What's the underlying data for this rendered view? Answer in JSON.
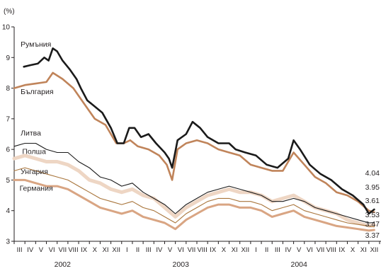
{
  "chart_data": {
    "type": "line",
    "ylabel": "(%)",
    "ylim": [
      3,
      10
    ],
    "yticks": [
      3,
      4,
      5,
      6,
      7,
      8,
      9,
      10
    ],
    "x_months": [
      "III",
      "IV",
      "V",
      "VI",
      "VII",
      "VIII",
      "IX",
      "X",
      "XI",
      "XII",
      "I",
      "II",
      "III",
      "IV",
      "V",
      "VI",
      "VII",
      "VIII",
      "IX",
      "X",
      "XI",
      "XII",
      "I",
      "II",
      "III",
      "IV",
      "V",
      "VI",
      "VII",
      "VIII",
      "IX",
      "X",
      "XI",
      "XII"
    ],
    "years": [
      {
        "label": "2002",
        "month_index": 4.5
      },
      {
        "label": "2003",
        "month_index": 15.5
      },
      {
        "label": "2004",
        "month_index": 26.5
      }
    ],
    "grid": false,
    "series": [
      {
        "name": "Румъния",
        "color": "#1a1a1a",
        "width": 2.6,
        "end_value": "4.04",
        "points": [
          [
            0.9,
            8.7
          ],
          [
            1.5,
            8.75
          ],
          [
            2.2,
            8.8
          ],
          [
            2.8,
            9.0
          ],
          [
            3.2,
            8.9
          ],
          [
            3.6,
            9.3
          ],
          [
            4.0,
            9.2
          ],
          [
            4.5,
            8.9
          ],
          [
            5.2,
            8.6
          ],
          [
            5.8,
            8.3
          ],
          [
            6.2,
            8.0
          ],
          [
            6.8,
            7.6
          ],
          [
            7.5,
            7.4
          ],
          [
            8.2,
            7.2
          ],
          [
            9.0,
            6.7
          ],
          [
            9.6,
            6.2
          ],
          [
            10.2,
            6.2
          ],
          [
            10.7,
            6.7
          ],
          [
            11.2,
            6.7
          ],
          [
            11.8,
            6.4
          ],
          [
            12.5,
            6.5
          ],
          [
            13.2,
            6.2
          ],
          [
            14.0,
            5.9
          ],
          [
            14.4,
            5.7
          ],
          [
            14.7,
            5.4
          ],
          [
            15.2,
            6.3
          ],
          [
            16.0,
            6.5
          ],
          [
            16.6,
            6.9
          ],
          [
            17.3,
            6.7
          ],
          [
            18.0,
            6.4
          ],
          [
            19.0,
            6.2
          ],
          [
            20.0,
            6.2
          ],
          [
            20.6,
            6.0
          ],
          [
            21.5,
            5.9
          ],
          [
            22.5,
            5.8
          ],
          [
            23.5,
            5.5
          ],
          [
            24.5,
            5.4
          ],
          [
            25.5,
            5.7
          ],
          [
            26.0,
            6.3
          ],
          [
            26.6,
            6.0
          ],
          [
            27.5,
            5.5
          ],
          [
            28.5,
            5.2
          ],
          [
            29.5,
            5.0
          ],
          [
            30.5,
            4.7
          ],
          [
            31.5,
            4.5
          ],
          [
            32.5,
            4.2
          ],
          [
            33.0,
            3.9
          ],
          [
            33.5,
            4.04
          ]
        ]
      },
      {
        "name": "България",
        "color": "#c0845a",
        "width": 2.6,
        "end_value": "3.95",
        "points": [
          [
            0.0,
            8.0
          ],
          [
            1.0,
            8.1
          ],
          [
            2.0,
            8.15
          ],
          [
            3.0,
            8.2
          ],
          [
            3.6,
            8.5
          ],
          [
            4.5,
            8.3
          ],
          [
            5.5,
            8.0
          ],
          [
            6.5,
            7.5
          ],
          [
            7.5,
            7.0
          ],
          [
            8.5,
            6.8
          ],
          [
            9.5,
            6.2
          ],
          [
            10.2,
            6.2
          ],
          [
            10.8,
            6.3
          ],
          [
            11.5,
            6.1
          ],
          [
            12.5,
            6.0
          ],
          [
            13.5,
            5.8
          ],
          [
            14.2,
            5.5
          ],
          [
            14.7,
            5.0
          ],
          [
            15.2,
            6.0
          ],
          [
            16.0,
            6.2
          ],
          [
            17.0,
            6.3
          ],
          [
            18.0,
            6.2
          ],
          [
            19.0,
            6.0
          ],
          [
            20.0,
            5.9
          ],
          [
            21.0,
            5.8
          ],
          [
            22.0,
            5.5
          ],
          [
            23.0,
            5.4
          ],
          [
            24.0,
            5.3
          ],
          [
            25.0,
            5.3
          ],
          [
            26.0,
            5.9
          ],
          [
            27.0,
            5.5
          ],
          [
            28.0,
            5.1
          ],
          [
            29.0,
            4.9
          ],
          [
            30.0,
            4.6
          ],
          [
            31.0,
            4.5
          ],
          [
            32.0,
            4.3
          ],
          [
            33.0,
            4.0
          ],
          [
            33.5,
            3.95
          ]
        ]
      },
      {
        "name": "Литва",
        "color": "#1a1a1a",
        "width": 1.1,
        "end_value": "3.61",
        "points": [
          [
            0.0,
            6.1
          ],
          [
            1.0,
            6.2
          ],
          [
            2.0,
            6.2
          ],
          [
            3.0,
            6.0
          ],
          [
            4.0,
            5.9
          ],
          [
            5.0,
            5.9
          ],
          [
            6.0,
            5.6
          ],
          [
            7.0,
            5.4
          ],
          [
            8.0,
            5.1
          ],
          [
            9.0,
            5.0
          ],
          [
            10.0,
            4.8
          ],
          [
            11.0,
            4.9
          ],
          [
            12.0,
            4.6
          ],
          [
            13.0,
            4.4
          ],
          [
            14.0,
            4.2
          ],
          [
            15.0,
            3.9
          ],
          [
            16.0,
            4.2
          ],
          [
            17.0,
            4.4
          ],
          [
            18.0,
            4.6
          ],
          [
            19.0,
            4.7
          ],
          [
            20.0,
            4.8
          ],
          [
            21.0,
            4.7
          ],
          [
            22.0,
            4.6
          ],
          [
            23.0,
            4.5
          ],
          [
            24.0,
            4.3
          ],
          [
            25.0,
            4.3
          ],
          [
            26.0,
            4.4
          ],
          [
            27.0,
            4.3
          ],
          [
            28.0,
            4.1
          ],
          [
            29.0,
            4.0
          ],
          [
            30.0,
            3.9
          ],
          [
            31.0,
            3.8
          ],
          [
            32.0,
            3.7
          ],
          [
            33.0,
            3.6
          ],
          [
            33.5,
            3.61
          ]
        ]
      },
      {
        "name": "Полша",
        "color": "#eed6c4",
        "width": 5.0,
        "end_value": "3.53",
        "points": [
          [
            0.0,
            5.7
          ],
          [
            1.0,
            5.8
          ],
          [
            2.0,
            5.7
          ],
          [
            3.0,
            5.6
          ],
          [
            4.0,
            5.6
          ],
          [
            5.0,
            5.5
          ],
          [
            6.0,
            5.3
          ],
          [
            7.0,
            5.0
          ],
          [
            8.0,
            4.9
          ],
          [
            9.0,
            4.7
          ],
          [
            10.0,
            4.6
          ],
          [
            11.0,
            4.7
          ],
          [
            12.0,
            4.5
          ],
          [
            13.0,
            4.4
          ],
          [
            14.0,
            4.1
          ],
          [
            15.0,
            3.8
          ],
          [
            16.0,
            4.1
          ],
          [
            17.0,
            4.3
          ],
          [
            18.0,
            4.5
          ],
          [
            19.0,
            4.6
          ],
          [
            20.0,
            4.7
          ],
          [
            21.0,
            4.6
          ],
          [
            22.0,
            4.6
          ],
          [
            23.0,
            4.5
          ],
          [
            24.0,
            4.3
          ],
          [
            25.0,
            4.4
          ],
          [
            26.0,
            4.5
          ],
          [
            27.0,
            4.3
          ],
          [
            28.0,
            4.1
          ],
          [
            29.0,
            4.0
          ],
          [
            30.0,
            3.9
          ],
          [
            31.0,
            3.7
          ],
          [
            32.0,
            3.6
          ],
          [
            33.0,
            3.5
          ],
          [
            33.5,
            3.53
          ]
        ]
      },
      {
        "name": "Унгария",
        "color": "#a8743a",
        "width": 1.1,
        "end_value": "3.47",
        "points": [
          [
            0.0,
            5.3
          ],
          [
            1.0,
            5.4
          ],
          [
            2.0,
            5.3
          ],
          [
            3.0,
            5.2
          ],
          [
            4.0,
            5.1
          ],
          [
            5.0,
            5.0
          ],
          [
            6.0,
            4.8
          ],
          [
            7.0,
            4.6
          ],
          [
            8.0,
            4.4
          ],
          [
            9.0,
            4.3
          ],
          [
            10.0,
            4.2
          ],
          [
            11.0,
            4.3
          ],
          [
            12.0,
            4.1
          ],
          [
            13.0,
            4.0
          ],
          [
            14.0,
            3.8
          ],
          [
            15.0,
            3.6
          ],
          [
            16.0,
            3.9
          ],
          [
            17.0,
            4.1
          ],
          [
            18.0,
            4.3
          ],
          [
            19.0,
            4.4
          ],
          [
            20.0,
            4.4
          ],
          [
            21.0,
            4.3
          ],
          [
            22.0,
            4.3
          ],
          [
            23.0,
            4.2
          ],
          [
            24.0,
            4.0
          ],
          [
            25.0,
            4.1
          ],
          [
            26.0,
            4.2
          ],
          [
            27.0,
            4.0
          ],
          [
            28.0,
            3.9
          ],
          [
            29.0,
            3.8
          ],
          [
            30.0,
            3.7
          ],
          [
            31.0,
            3.6
          ],
          [
            32.0,
            3.55
          ],
          [
            33.0,
            3.5
          ],
          [
            33.5,
            3.47
          ]
        ]
      },
      {
        "name": "Германия",
        "color": "#d9a583",
        "width": 3.0,
        "end_value": "3.37",
        "points": [
          [
            0.0,
            5.0
          ],
          [
            1.0,
            5.0
          ],
          [
            2.0,
            4.9
          ],
          [
            3.0,
            4.8
          ],
          [
            4.0,
            4.8
          ],
          [
            5.0,
            4.7
          ],
          [
            6.0,
            4.5
          ],
          [
            7.0,
            4.3
          ],
          [
            8.0,
            4.1
          ],
          [
            9.0,
            4.0
          ],
          [
            10.0,
            3.9
          ],
          [
            11.0,
            4.0
          ],
          [
            12.0,
            3.8
          ],
          [
            13.0,
            3.7
          ],
          [
            14.0,
            3.6
          ],
          [
            15.0,
            3.4
          ],
          [
            16.0,
            3.7
          ],
          [
            17.0,
            3.9
          ],
          [
            18.0,
            4.1
          ],
          [
            19.0,
            4.2
          ],
          [
            20.0,
            4.2
          ],
          [
            21.0,
            4.1
          ],
          [
            22.0,
            4.1
          ],
          [
            23.0,
            4.0
          ],
          [
            24.0,
            3.8
          ],
          [
            25.0,
            3.9
          ],
          [
            26.0,
            4.0
          ],
          [
            27.0,
            3.8
          ],
          [
            28.0,
            3.7
          ],
          [
            29.0,
            3.6
          ],
          [
            30.0,
            3.5
          ],
          [
            31.0,
            3.45
          ],
          [
            32.0,
            3.4
          ],
          [
            33.0,
            3.35
          ],
          [
            33.5,
            3.37
          ]
        ]
      }
    ]
  }
}
